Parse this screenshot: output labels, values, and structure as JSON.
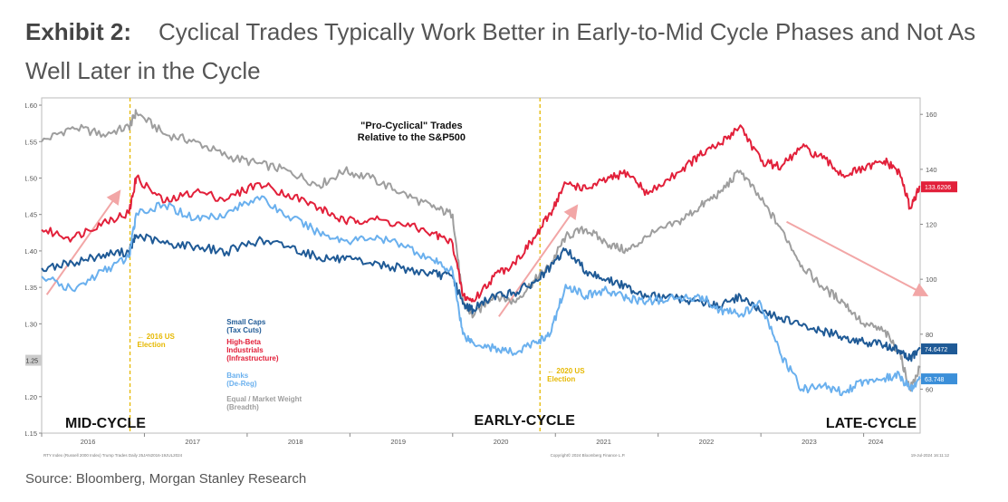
{
  "header": {
    "exhibit": "Exhibit 2:",
    "title": "Cyclical Trades Typically Work Better in Early-to-Mid Cycle Phases and Not As Well Later in the Cycle"
  },
  "footer": {
    "source": "Source: Bloomberg, Morgan Stanley Research"
  },
  "chart_data": {
    "type": "line",
    "title": "\"Pro-Cyclical\" Trades\nRelative to the S&P500",
    "x_ticks": [
      "2016",
      "2017",
      "2018",
      "2019",
      "2020",
      "2021",
      "2022",
      "2023",
      "2024"
    ],
    "x_range": [
      2016.0,
      2024.55
    ],
    "y_left": {
      "ticks": [
        1.15,
        1.2,
        1.25,
        1.3,
        1.35,
        1.4,
        1.45,
        1.5,
        1.55,
        1.6
      ],
      "range": [
        1.15,
        1.61
      ]
    },
    "y_right": {
      "ticks": [
        60,
        80,
        100,
        120,
        140,
        160
      ],
      "range": [
        44,
        166
      ]
    },
    "grid": false,
    "legend_position": "center-left",
    "series": [
      {
        "name": "Equal / Market Weight (Breadth)",
        "axis": "left",
        "color": "#9e9e9e",
        "x": [
          2016.0,
          2016.3,
          2016.6,
          2016.85,
          2016.92,
          2017.2,
          2017.5,
          2017.8,
          2018.1,
          2018.4,
          2018.7,
          2018.95,
          2019.2,
          2019.5,
          2019.8,
          2020.0,
          2020.1,
          2020.2,
          2020.4,
          2020.6,
          2020.8,
          2020.95,
          2021.1,
          2021.3,
          2021.5,
          2021.7,
          2021.9,
          2022.2,
          2022.4,
          2022.6,
          2022.8,
          2023.0,
          2023.2,
          2023.4,
          2023.6,
          2023.8,
          2024.0,
          2024.2,
          2024.35,
          2024.45,
          2024.55
        ],
        "y": [
          1.55,
          1.57,
          1.56,
          1.57,
          1.59,
          1.56,
          1.55,
          1.53,
          1.52,
          1.51,
          1.49,
          1.51,
          1.5,
          1.48,
          1.46,
          1.45,
          1.33,
          1.31,
          1.34,
          1.33,
          1.36,
          1.38,
          1.42,
          1.43,
          1.41,
          1.4,
          1.42,
          1.44,
          1.46,
          1.48,
          1.51,
          1.47,
          1.43,
          1.38,
          1.35,
          1.33,
          1.3,
          1.29,
          1.26,
          1.21,
          1.24
        ]
      },
      {
        "name": "High-Beta Industrials (Infrastructure)",
        "axis": "right",
        "color": "#e2203a",
        "x": [
          2016.0,
          2016.3,
          2016.6,
          2016.85,
          2016.92,
          2017.2,
          2017.5,
          2017.8,
          2018.1,
          2018.4,
          2018.7,
          2018.95,
          2019.2,
          2019.5,
          2019.8,
          2020.0,
          2020.1,
          2020.2,
          2020.4,
          2020.6,
          2020.8,
          2020.95,
          2021.1,
          2021.3,
          2021.5,
          2021.7,
          2021.9,
          2022.2,
          2022.4,
          2022.6,
          2022.8,
          2023.0,
          2023.2,
          2023.4,
          2023.6,
          2023.8,
          2024.0,
          2024.2,
          2024.35,
          2024.45,
          2024.55
        ],
        "y": [
          118,
          115,
          121,
          124,
          137,
          128,
          132,
          129,
          135,
          131,
          126,
          121,
          122,
          120,
          117,
          113,
          94,
          92,
          101,
          106,
          115,
          124,
          135,
          133,
          136,
          139,
          131,
          139,
          145,
          149,
          156,
          143,
          141,
          148,
          144,
          138,
          140,
          143,
          139,
          126,
          133.62
        ]
      },
      {
        "name": "Small Caps (Tax Cuts)",
        "axis": "right",
        "color": "#1f5a96",
        "x": [
          2016.0,
          2016.3,
          2016.6,
          2016.85,
          2016.92,
          2017.2,
          2017.5,
          2017.8,
          2018.1,
          2018.4,
          2018.7,
          2018.95,
          2019.2,
          2019.5,
          2019.8,
          2020.0,
          2020.1,
          2020.2,
          2020.4,
          2020.6,
          2020.8,
          2020.95,
          2021.1,
          2021.3,
          2021.5,
          2021.7,
          2021.9,
          2022.2,
          2022.4,
          2022.6,
          2022.8,
          2023.0,
          2023.2,
          2023.4,
          2023.6,
          2023.8,
          2024.0,
          2024.2,
          2024.35,
          2024.45,
          2024.55
        ],
        "y": [
          104,
          106,
          109,
          110,
          116,
          113,
          112,
          110,
          114,
          112,
          108,
          107,
          106,
          104,
          102,
          101,
          91,
          89,
          94,
          95,
          99,
          104,
          111,
          103,
          100,
          97,
          94,
          93,
          92,
          90,
          94,
          88,
          86,
          83,
          81,
          79,
          77,
          76,
          74,
          71,
          74.65
        ]
      },
      {
        "name": "Banks (De-Reg)",
        "axis": "right",
        "color": "#6ab0ee",
        "x": [
          2016.0,
          2016.3,
          2016.6,
          2016.85,
          2016.92,
          2017.2,
          2017.5,
          2017.8,
          2018.1,
          2018.4,
          2018.7,
          2018.95,
          2019.2,
          2019.5,
          2019.8,
          2020.0,
          2020.1,
          2020.2,
          2020.4,
          2020.6,
          2020.8,
          2020.95,
          2021.1,
          2021.3,
          2021.5,
          2021.7,
          2021.9,
          2022.2,
          2022.4,
          2022.6,
          2022.8,
          2023.0,
          2023.2,
          2023.4,
          2023.6,
          2023.8,
          2024.0,
          2024.2,
          2024.35,
          2024.45,
          2024.55
        ],
        "y": [
          101,
          96,
          103,
          108,
          124,
          127,
          122,
          124,
          130,
          123,
          117,
          114,
          115,
          113,
          107,
          103,
          80,
          77,
          75,
          73,
          77,
          80,
          98,
          94,
          96,
          93,
          92,
          93,
          94,
          89,
          87,
          91,
          72,
          60,
          61,
          59,
          63,
          64,
          65,
          60,
          63.75
        ]
      }
    ],
    "labels": {
      "legend_small_caps": "Small Caps\n(Tax Cuts)",
      "legend_high_beta": "High-Beta\nIndustrials\n(Infrastructure)",
      "legend_banks": "Banks\n(De-Reg)",
      "legend_equal": "Equal / Market Weight\n(Breadth)",
      "phase_mid": "MID-CYCLE",
      "phase_early": "EARLY-CYCLE",
      "phase_late": "LATE-CYCLE",
      "election_2016": "2016 US\nElection",
      "election_2020": "2020 US\nElection",
      "last_red": "133.6206",
      "last_darkblue": "74.6472",
      "last_lightblue": "63.748",
      "left_axis_marker": "1.25",
      "footnote_left": "RTY Index (Russell 2000 Index) Trump Trades  Daily 25JAN2016-19JUL2024",
      "footnote_center": "Copyright© 2024 Bloomberg Finance L.P.",
      "footnote_right": "19-Jul-2024 16:11:12"
    },
    "event_lines_x": [
      2016.86,
      2020.85
    ],
    "trend_arrows": [
      {
        "color": "#f2a6a6",
        "x": [
          2016.05,
          2016.75
        ],
        "y_left": [
          1.34,
          1.48
        ]
      },
      {
        "color": "#f2a6a6",
        "x": [
          2020.45,
          2021.2
        ],
        "y_left": [
          1.31,
          1.46
        ]
      },
      {
        "color": "#f2a6a6",
        "x": [
          2023.25,
          2024.6
        ],
        "y_left": [
          1.44,
          1.34
        ]
      }
    ]
  }
}
